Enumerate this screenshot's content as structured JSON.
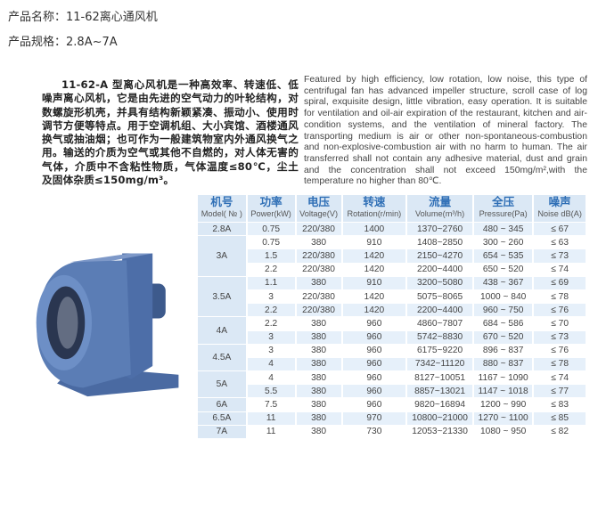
{
  "product_name": {
    "label": "产品名称：",
    "value": "11-62离心通风机"
  },
  "product_spec": {
    "label": "产品规格：",
    "value": "2.8A~7A"
  },
  "description_cn_first": "11-62-A 型离心风机是一种高效率、转速低、低噪声离心风机，它是由先进的空气动力的叶轮结构，对数螺旋形机壳，并具有结构新颖紧凑、振动小、使用时调节方便等特点。用于空调机组、大小宾馆、酒楼通风换气或抽油烟；也可作为一般建筑物室内外通风换气之用。输送的介质为空气或其他不自燃的，对人体无害的气体，介质中不含粘性物质，气体温度≤80℃，尘土及固体杂质≤150mg/m³。",
  "description_en": "Featured by high efficiency, low rotation, low noise, this type of centrifugal fan has advanced impeller structure, scroll case of log spiral, exquisite design, little vibration, easy operation. It is suitable for ventilation and oil-air expiration of the restaurant, kitchen and air-condition systems, and the ventilation of mineral factory. The transporting medium is air or other non-spontaneous-combustion and non-explosive-combustion air with no harm to human. The air transferred shall not contain any adhesive material, dust and grain and the concentration shall not exceed 150mg/m²,with the temperature no higher than 80℃.",
  "colors": {
    "header_text": "#2f6fb6",
    "header_bg": "#dbe8f5",
    "row_alt_bg": "#e6f0fa",
    "fan_body": "#5b7db5"
  },
  "table": {
    "headers": [
      {
        "cn": "机号",
        "en": "Model( № )"
      },
      {
        "cn": "功率",
        "en": "Power(kW)"
      },
      {
        "cn": "电压",
        "en": "Voltage(V)"
      },
      {
        "cn": "转速",
        "en": "Rotation(r/min)"
      },
      {
        "cn": "流量",
        "en": "Volume(m³/h)"
      },
      {
        "cn": "全压",
        "en": "Pressure(Pa)"
      },
      {
        "cn": "噪声",
        "en": "Noise dB(A)"
      }
    ],
    "groups": [
      {
        "model": "2.8A",
        "rows": [
          [
            "0.75",
            "220/380",
            "1400",
            "1370~2760",
            "480 ~ 345",
            "≤ 67"
          ]
        ]
      },
      {
        "model": "3A",
        "rows": [
          [
            "0.75",
            "380",
            "910",
            "1408~2850",
            "300 ~ 260",
            "≤ 63"
          ],
          [
            "1.5",
            "220/380",
            "1420",
            "2150~4270",
            "654 ~ 535",
            "≤ 73"
          ],
          [
            "2.2",
            "220/380",
            "1420",
            "2200~4400",
            "650 ~ 520",
            "≤ 74"
          ]
        ]
      },
      {
        "model": "3.5A",
        "rows": [
          [
            "1.1",
            "380",
            "910",
            "3200~5080",
            "438 ~ 367",
            "≤ 69"
          ],
          [
            "3",
            "220/380",
            "1420",
            "5075~8065",
            "1000 ~ 840",
            "≤ 78"
          ],
          [
            "2.2",
            "220/380",
            "1420",
            "2200~4400",
            "960 ~ 750",
            "≤ 76"
          ]
        ]
      },
      {
        "model": "4A",
        "rows": [
          [
            "2.2",
            "380",
            "960",
            "4860~7807",
            "684 ~ 586",
            "≤ 70"
          ],
          [
            "3",
            "380",
            "960",
            "5742~8830",
            "670 ~ 520",
            "≤ 73"
          ]
        ]
      },
      {
        "model": "4.5A",
        "rows": [
          [
            "3",
            "380",
            "960",
            "6175~9220",
            "896 ~ 837",
            "≤ 76"
          ],
          [
            "4",
            "380",
            "960",
            "7342~11120",
            "880 ~ 837",
            "≤ 78"
          ]
        ]
      },
      {
        "model": "5A",
        "rows": [
          [
            "4",
            "380",
            "960",
            "8127~10051",
            "1167 ~ 1090",
            "≤ 74"
          ],
          [
            "5.5",
            "380",
            "960",
            "8857~13021",
            "1147 ~ 1018",
            "≤ 77"
          ]
        ]
      },
      {
        "model": "6A",
        "rows": [
          [
            "7.5",
            "380",
            "960",
            "9820~16894",
            "1200 ~ 990",
            "≤ 83"
          ]
        ]
      },
      {
        "model": "6.5A",
        "rows": [
          [
            "11",
            "380",
            "970",
            "10800~21000",
            "1270 ~ 1100",
            "≤ 85"
          ]
        ]
      },
      {
        "model": "7A",
        "rows": [
          [
            "11",
            "380",
            "730",
            "12053~21330",
            "1080 ~ 950",
            "≤ 82"
          ]
        ]
      }
    ]
  }
}
